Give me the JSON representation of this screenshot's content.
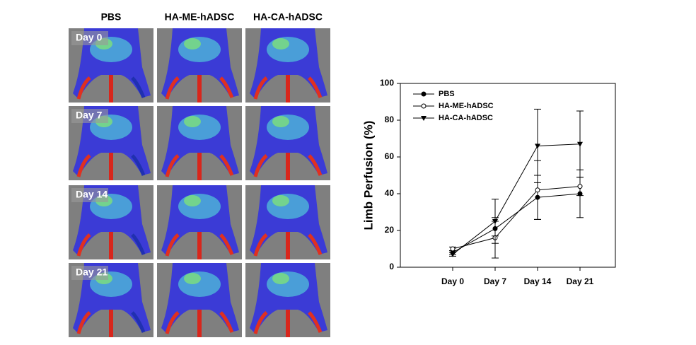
{
  "panel": {
    "columns": [
      "PBS",
      "HA-ME-hADSC",
      "HA-CA-hADSC"
    ],
    "rows": [
      "Day 0",
      "Day 7",
      "Day 14",
      "Day 21"
    ]
  },
  "chart_data": {
    "type": "line",
    "y_label": "Limb Perfusion (%)",
    "categories": [
      "Day 0",
      "Day 7",
      "Day 14",
      "Day 21"
    ],
    "ylim": [
      0,
      100
    ],
    "yticks": [
      0,
      20,
      40,
      60,
      80,
      100
    ],
    "legend": "upper-left",
    "series": [
      {
        "name": "PBS",
        "color": "#000000",
        "marker": "circle-filled",
        "values": [
          8,
          21,
          38,
          40
        ],
        "errors": [
          1,
          4,
          12,
          13
        ]
      },
      {
        "name": "HA-ME-hADSC",
        "color": "#000000",
        "marker": "circle-open",
        "values": [
          10,
          16,
          42,
          44
        ],
        "errors": [
          1,
          11,
          16,
          5
        ]
      },
      {
        "name": "HA-CA-hADSC",
        "color": "#000000",
        "marker": "triangle-down",
        "values": [
          7,
          25,
          66,
          67
        ],
        "errors": [
          1,
          12,
          20,
          18
        ]
      }
    ]
  }
}
